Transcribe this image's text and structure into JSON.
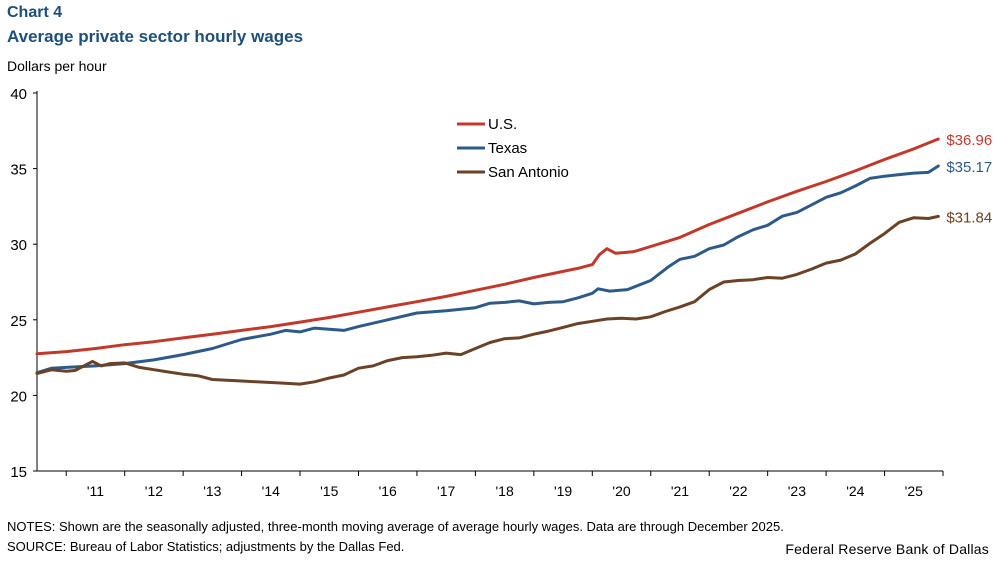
{
  "header": {
    "chart_number": "Chart 4",
    "title": "Average private sector hourly wages"
  },
  "footer": {
    "notes": "NOTES: Shown are the seasonally adjusted, three-month moving average of average hourly wages. Data are through December 2025.",
    "source": "SOURCE: Bureau of Labor Statistics; adjustments by the Dallas Fed.",
    "credit": "Federal Reserve Bank of Dallas"
  },
  "colors": {
    "us": "#c0392b",
    "texas": "#2e5a8a",
    "san_antonio": "#6b4226",
    "axis": "#000000"
  },
  "chart_data": {
    "type": "line",
    "title": "Average private sector hourly wages",
    "xlabel": "",
    "ylabel": "Dollars per hour",
    "ylim": [
      15,
      40
    ],
    "yticks": [
      15,
      20,
      25,
      30,
      35,
      40
    ],
    "xlim": [
      2010.5,
      2026.0
    ],
    "xtick_labels": [
      "'11",
      "'12",
      "'13",
      "'14",
      "'15",
      "'16",
      "'17",
      "'18",
      "'19",
      "'20",
      "'21",
      "'22",
      "'23",
      "'24",
      "'25"
    ],
    "xtick_years": [
      2011,
      2012,
      2013,
      2014,
      2015,
      2016,
      2017,
      2018,
      2019,
      2020,
      2021,
      2022,
      2023,
      2024,
      2025
    ],
    "grid": false,
    "legend_position": "top-center",
    "series": [
      {
        "name": "U.S.",
        "key": "us",
        "end_label": "$36.96",
        "points": [
          [
            2010.5,
            22.75
          ],
          [
            2011.0,
            22.9
          ],
          [
            2011.5,
            23.1
          ],
          [
            2012.0,
            23.35
          ],
          [
            2012.5,
            23.55
          ],
          [
            2013.0,
            23.8
          ],
          [
            2013.5,
            24.05
          ],
          [
            2014.0,
            24.3
          ],
          [
            2014.5,
            24.55
          ],
          [
            2015.0,
            24.85
          ],
          [
            2015.5,
            25.15
          ],
          [
            2016.0,
            25.5
          ],
          [
            2016.5,
            25.85
          ],
          [
            2017.0,
            26.2
          ],
          [
            2017.5,
            26.55
          ],
          [
            2018.0,
            26.95
          ],
          [
            2018.5,
            27.35
          ],
          [
            2019.0,
            27.8
          ],
          [
            2019.5,
            28.2
          ],
          [
            2019.75,
            28.4
          ],
          [
            2020.0,
            28.65
          ],
          [
            2020.12,
            29.3
          ],
          [
            2020.25,
            29.7
          ],
          [
            2020.4,
            29.4
          ],
          [
            2020.7,
            29.5
          ],
          [
            2021.0,
            29.85
          ],
          [
            2021.5,
            30.45
          ],
          [
            2022.0,
            31.3
          ],
          [
            2022.5,
            32.05
          ],
          [
            2023.0,
            32.8
          ],
          [
            2023.5,
            33.5
          ],
          [
            2024.0,
            34.15
          ],
          [
            2024.5,
            34.85
          ],
          [
            2025.0,
            35.6
          ],
          [
            2025.5,
            36.3
          ],
          [
            2025.92,
            36.96
          ]
        ]
      },
      {
        "name": "Texas",
        "key": "texas",
        "end_label": "$35.17",
        "points": [
          [
            2010.5,
            21.5
          ],
          [
            2010.75,
            21.8
          ],
          [
            2011.0,
            21.85
          ],
          [
            2011.5,
            21.95
          ],
          [
            2012.0,
            22.1
          ],
          [
            2012.5,
            22.35
          ],
          [
            2013.0,
            22.7
          ],
          [
            2013.5,
            23.1
          ],
          [
            2014.0,
            23.7
          ],
          [
            2014.5,
            24.05
          ],
          [
            2014.75,
            24.3
          ],
          [
            2015.0,
            24.2
          ],
          [
            2015.25,
            24.45
          ],
          [
            2015.75,
            24.3
          ],
          [
            2016.0,
            24.55
          ],
          [
            2016.5,
            25.0
          ],
          [
            2017.0,
            25.45
          ],
          [
            2017.5,
            25.6
          ],
          [
            2018.0,
            25.8
          ],
          [
            2018.25,
            26.1
          ],
          [
            2018.5,
            26.15
          ],
          [
            2018.75,
            26.25
          ],
          [
            2019.0,
            26.05
          ],
          [
            2019.25,
            26.15
          ],
          [
            2019.5,
            26.2
          ],
          [
            2019.75,
            26.45
          ],
          [
            2020.0,
            26.75
          ],
          [
            2020.1,
            27.05
          ],
          [
            2020.3,
            26.9
          ],
          [
            2020.6,
            27.0
          ],
          [
            2021.0,
            27.6
          ],
          [
            2021.3,
            28.5
          ],
          [
            2021.5,
            29.0
          ],
          [
            2021.75,
            29.2
          ],
          [
            2022.0,
            29.7
          ],
          [
            2022.25,
            29.95
          ],
          [
            2022.5,
            30.5
          ],
          [
            2022.75,
            30.95
          ],
          [
            2023.0,
            31.25
          ],
          [
            2023.25,
            31.85
          ],
          [
            2023.5,
            32.1
          ],
          [
            2023.75,
            32.6
          ],
          [
            2024.0,
            33.1
          ],
          [
            2024.25,
            33.4
          ],
          [
            2024.5,
            33.85
          ],
          [
            2024.75,
            34.35
          ],
          [
            2025.0,
            34.5
          ],
          [
            2025.25,
            34.6
          ],
          [
            2025.5,
            34.7
          ],
          [
            2025.75,
            34.75
          ],
          [
            2025.92,
            35.17
          ]
        ]
      },
      {
        "name": "San Antonio",
        "key": "san_antonio",
        "end_label": "$31.84",
        "points": [
          [
            2010.5,
            21.45
          ],
          [
            2010.75,
            21.7
          ],
          [
            2011.0,
            21.6
          ],
          [
            2011.15,
            21.65
          ],
          [
            2011.3,
            21.95
          ],
          [
            2011.45,
            22.25
          ],
          [
            2011.6,
            21.95
          ],
          [
            2011.75,
            22.1
          ],
          [
            2012.0,
            22.15
          ],
          [
            2012.25,
            21.85
          ],
          [
            2012.5,
            21.7
          ],
          [
            2012.75,
            21.55
          ],
          [
            2013.0,
            21.4
          ],
          [
            2013.25,
            21.3
          ],
          [
            2013.5,
            21.05
          ],
          [
            2013.75,
            21.0
          ],
          [
            2014.0,
            20.95
          ],
          [
            2014.25,
            20.9
          ],
          [
            2014.5,
            20.85
          ],
          [
            2014.75,
            20.8
          ],
          [
            2015.0,
            20.75
          ],
          [
            2015.25,
            20.9
          ],
          [
            2015.5,
            21.15
          ],
          [
            2015.75,
            21.35
          ],
          [
            2016.0,
            21.8
          ],
          [
            2016.25,
            21.95
          ],
          [
            2016.5,
            22.3
          ],
          [
            2016.75,
            22.5
          ],
          [
            2017.0,
            22.55
          ],
          [
            2017.25,
            22.65
          ],
          [
            2017.5,
            22.8
          ],
          [
            2017.75,
            22.7
          ],
          [
            2018.0,
            23.1
          ],
          [
            2018.25,
            23.5
          ],
          [
            2018.5,
            23.75
          ],
          [
            2018.75,
            23.8
          ],
          [
            2019.0,
            24.05
          ],
          [
            2019.25,
            24.25
          ],
          [
            2019.5,
            24.5
          ],
          [
            2019.75,
            24.75
          ],
          [
            2020.0,
            24.9
          ],
          [
            2020.25,
            25.05
          ],
          [
            2020.5,
            25.1
          ],
          [
            2020.75,
            25.05
          ],
          [
            2021.0,
            25.2
          ],
          [
            2021.25,
            25.55
          ],
          [
            2021.5,
            25.85
          ],
          [
            2021.75,
            26.2
          ],
          [
            2022.0,
            27.0
          ],
          [
            2022.25,
            27.5
          ],
          [
            2022.5,
            27.6
          ],
          [
            2022.75,
            27.65
          ],
          [
            2023.0,
            27.8
          ],
          [
            2023.25,
            27.75
          ],
          [
            2023.5,
            28.0
          ],
          [
            2023.75,
            28.35
          ],
          [
            2024.0,
            28.75
          ],
          [
            2024.25,
            28.95
          ],
          [
            2024.5,
            29.35
          ],
          [
            2024.75,
            30.05
          ],
          [
            2025.0,
            30.7
          ],
          [
            2025.25,
            31.45
          ],
          [
            2025.5,
            31.75
          ],
          [
            2025.75,
            31.7
          ],
          [
            2025.92,
            31.84
          ]
        ]
      }
    ]
  }
}
